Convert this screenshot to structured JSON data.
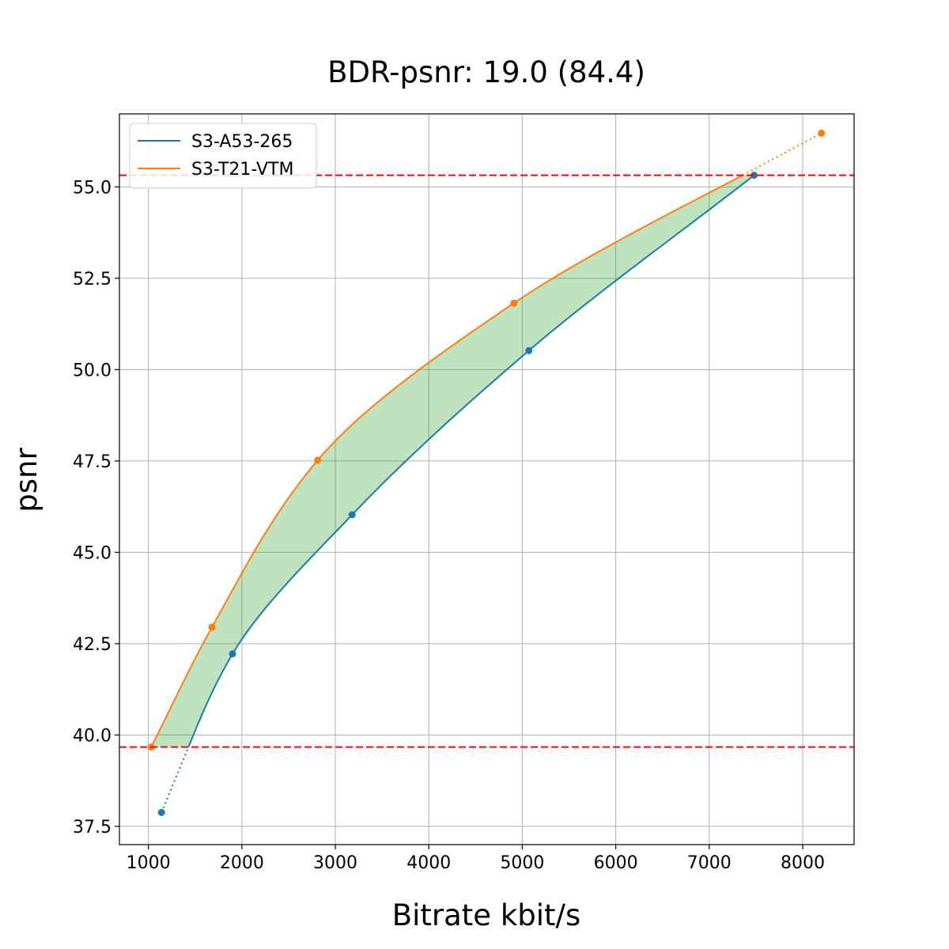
{
  "chart_data": {
    "type": "line",
    "title": "BDR-psnr: 19.0 (84.4)",
    "xlabel": "Bitrate kbit/s",
    "ylabel": "psnr",
    "xlim": [
      690,
      8550
    ],
    "ylim": [
      37.0,
      57.0
    ],
    "xticks": [
      1000,
      2000,
      3000,
      4000,
      5000,
      6000,
      7000,
      8000
    ],
    "yticks": [
      37.5,
      40.0,
      42.5,
      45.0,
      47.5,
      50.0,
      52.5,
      55.0
    ],
    "ytick_labels": [
      "37.5",
      "40.0",
      "42.5",
      "45.0",
      "47.5",
      "50.0",
      "52.5",
      "55.0"
    ],
    "grid": true,
    "legend_position": "upper-left",
    "series": [
      {
        "name": "S3-A53-265",
        "color": "#1f77b4",
        "points": [
          {
            "x": 1140,
            "y": 37.88
          },
          {
            "x": 1900,
            "y": 42.22
          },
          {
            "x": 3180,
            "y": 46.03
          },
          {
            "x": 5070,
            "y": 50.52
          },
          {
            "x": 7480,
            "y": 55.32
          }
        ]
      },
      {
        "name": "S3-T21-VTM",
        "color": "#ff7f0e",
        "points": [
          {
            "x": 1030,
            "y": 39.67
          },
          {
            "x": 1680,
            "y": 42.95
          },
          {
            "x": 2810,
            "y": 47.52
          },
          {
            "x": 4910,
            "y": 51.82
          },
          {
            "x": 8200,
            "y": 56.47
          }
        ]
      }
    ],
    "reference_lines": [
      {
        "orientation": "horizontal",
        "y": 55.32,
        "color": "#ff0000",
        "style": "dashed"
      },
      {
        "orientation": "horizontal",
        "y": 39.67,
        "color": "#ff0000",
        "style": "dashed"
      }
    ],
    "fill_between_color": "#2ca02c",
    "common_range": [
      39.67,
      55.32
    ]
  }
}
